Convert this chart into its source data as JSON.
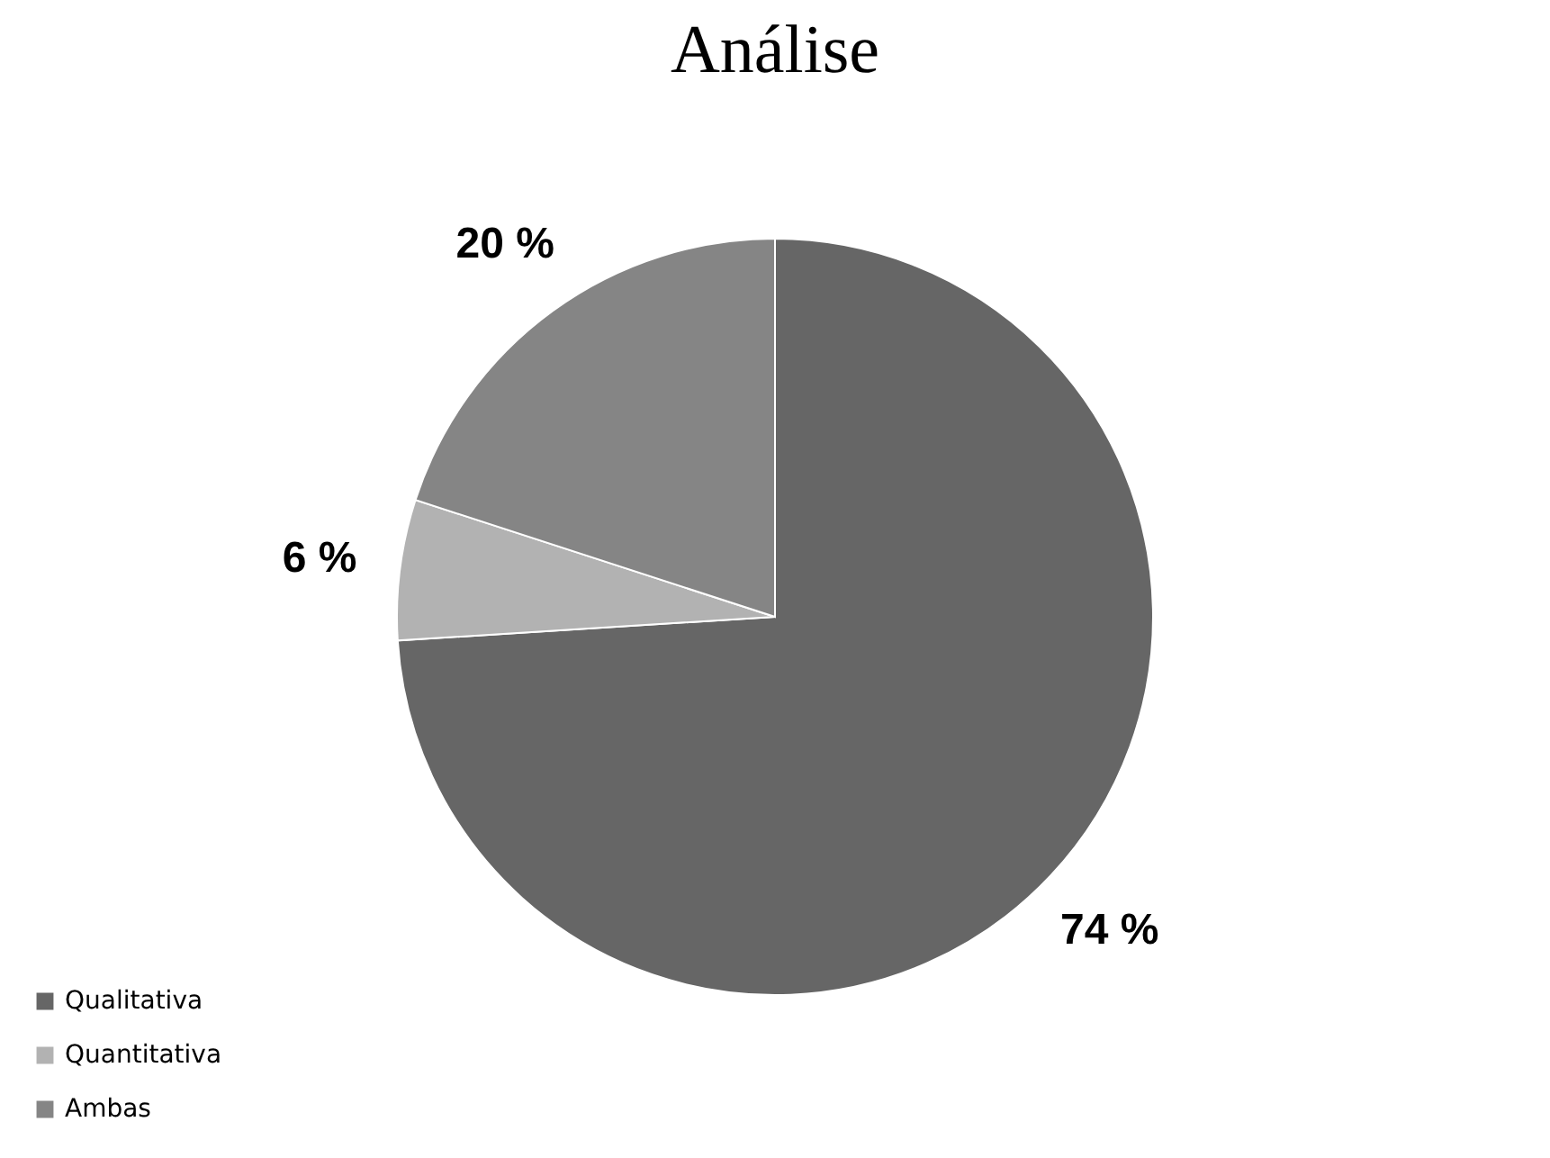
{
  "chart_data": {
    "type": "pie",
    "title": "Análise",
    "categories": [
      "Qualitativa",
      "Quantitativa",
      "Ambas"
    ],
    "values": [
      74,
      6,
      20
    ],
    "colors": [
      "#666666",
      "#b2b2b2",
      "#858585"
    ],
    "value_labels": [
      "74 %",
      "6 %",
      "20 %"
    ],
    "legend": "bottom left"
  }
}
